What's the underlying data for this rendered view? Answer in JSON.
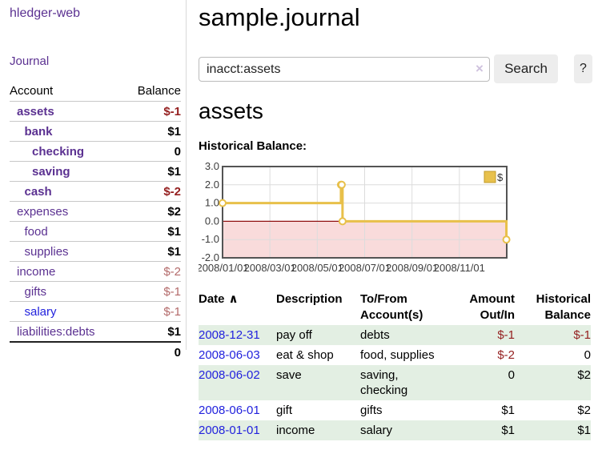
{
  "sidebar": {
    "brand": "hledger-web",
    "journal_label": "Journal",
    "accounts": {
      "header_account": "Account",
      "header_balance": "Balance",
      "rows": [
        {
          "name": "assets",
          "balance": "$-1",
          "level": 1,
          "bold": true,
          "neg": "strong"
        },
        {
          "name": "bank",
          "balance": "$1",
          "level": 2,
          "bold": true,
          "neg": ""
        },
        {
          "name": "checking",
          "balance": "0",
          "level": 3,
          "bold": true,
          "neg": ""
        },
        {
          "name": "saving",
          "balance": "$1",
          "level": 3,
          "bold": true,
          "neg": ""
        },
        {
          "name": "cash",
          "balance": "$-2",
          "level": 2,
          "bold": true,
          "neg": "strong"
        },
        {
          "name": "expenses",
          "balance": "$2",
          "level": 1,
          "bold": false,
          "neg": ""
        },
        {
          "name": "food",
          "balance": "$1",
          "level": 2,
          "bold": false,
          "neg": ""
        },
        {
          "name": "supplies",
          "balance": "$1",
          "level": 2,
          "bold": false,
          "neg": ""
        },
        {
          "name": "income",
          "balance": "$-2",
          "level": 1,
          "bold": false,
          "neg": "soft"
        },
        {
          "name": "gifts",
          "balance": "$-1",
          "level": 2,
          "bold": false,
          "neg": "soft"
        },
        {
          "name": "salary",
          "balance": "$-1",
          "level": 2,
          "bold": false,
          "neg": "soft",
          "link": "blue"
        },
        {
          "name": "liabilities:debts",
          "balance": "$1",
          "level": 1,
          "bold": false,
          "neg": ""
        }
      ],
      "total": "0"
    }
  },
  "header": {
    "title": "sample.journal"
  },
  "search": {
    "value": "inacct:assets",
    "clear_icon": "×",
    "button_label": "Search",
    "help_label": "?"
  },
  "account_page": {
    "title": "assets",
    "chart_label": "Historical Balance:"
  },
  "chart_data": {
    "type": "line",
    "step": true,
    "title": "Historical Balance:",
    "series": [
      {
        "name": "$",
        "color": "#e8c04a",
        "points": [
          [
            "2008-01-01",
            1
          ],
          [
            "2008-06-01",
            2
          ],
          [
            "2008-06-02",
            2
          ],
          [
            "2008-06-03",
            0
          ],
          [
            "2008-12-31",
            -1
          ]
        ]
      }
    ],
    "x_range": [
      "2008-01-01",
      "2009-01-01"
    ],
    "x_ticks": [
      "2008/01/01",
      "2008/03/01",
      "2008/05/01",
      "2008/07/01",
      "2008/09/01",
      "2008/11/01"
    ],
    "y_ticks": [
      3.0,
      2.0,
      1.0,
      0.0,
      -1.0,
      -2.0
    ],
    "y_tick_labels": [
      "3.0",
      "2.0",
      "1.0",
      "0.0",
      "-1.0",
      "-2.0"
    ],
    "ylim": [
      -2,
      3
    ],
    "grid": true,
    "legend_position": "top-right",
    "colors": {
      "negative_region": "#f9dbdb",
      "zero_line": "#8f1010",
      "grid": "#dcdcdc",
      "border": "#545454",
      "legend_fill": "#e8c14d",
      "legend_border": "#c19b2b",
      "axis_text": "#3c3c3c"
    }
  },
  "register": {
    "headers": {
      "date": "Date",
      "sort_indicator": "∧",
      "description": "Description",
      "accounts": "To/From Account(s)",
      "amount": "Amount Out/In",
      "balance": "Historical Balance"
    },
    "rows": [
      {
        "date": "2008-12-31",
        "description": "pay off",
        "accounts": "debts",
        "amount": "$-1",
        "balance": "$-1"
      },
      {
        "date": "2008-06-03",
        "description": "eat & shop",
        "accounts": "food, supplies",
        "amount": "$-2",
        "balance": "0"
      },
      {
        "date": "2008-06-02",
        "description": "save",
        "accounts": "saving, checking",
        "amount": "0",
        "balance": "$2"
      },
      {
        "date": "2008-06-01",
        "description": "gift",
        "accounts": "gifts",
        "amount": "$1",
        "balance": "$2"
      },
      {
        "date": "2008-01-01",
        "description": "income",
        "accounts": "salary",
        "amount": "$1",
        "balance": "$1"
      }
    ]
  }
}
